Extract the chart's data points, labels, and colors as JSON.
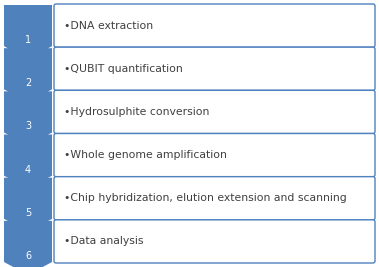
{
  "steps": [
    {
      "number": "1",
      "text": "•DNA extraction"
    },
    {
      "number": "2",
      "text": "•QUBIT quantification"
    },
    {
      "number": "3",
      "text": "•Hydrosulphite conversion"
    },
    {
      "number": "4",
      "text": "•Whole genome amplification"
    },
    {
      "number": "5",
      "text": "•Chip hybridization, elution extension and scanning"
    },
    {
      "number": "6",
      "text": "•Data analysis"
    }
  ],
  "arrow_color": "#4F81BD",
  "box_color": "#FFFFFF",
  "box_border_color": "#4F81BD",
  "number_color": "#FFFFFF",
  "text_color": "#404040",
  "background_color": "#FFFFFF",
  "fig_width": 3.79,
  "fig_height": 2.67,
  "dpi": 100
}
